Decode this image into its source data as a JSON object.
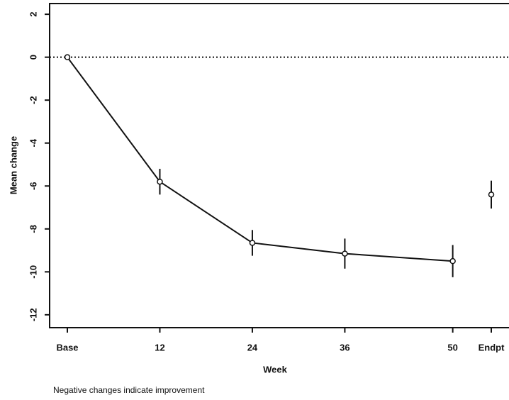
{
  "chart_data": {
    "type": "line",
    "x_label": "Week",
    "y_label": "Mean change",
    "footnote": "Negative changes indicate improvement",
    "series": [
      {
        "x": [
          0,
          12,
          24,
          36,
          50
        ],
        "values": [
          0,
          -5.8,
          -8.65,
          -9.15,
          -9.5
        ],
        "errors": [
          0,
          0.6,
          0.6,
          0.7,
          0.75
        ],
        "line": true,
        "color": "#111111"
      },
      {
        "x": [
          55
        ],
        "values": [
          -6.4
        ],
        "errors": [
          0.65
        ],
        "line": false,
        "color": "#111111"
      }
    ],
    "xlim": [
      -2.3,
      57.3
    ],
    "xticks": [
      {
        "value": 0,
        "label": "Base"
      },
      12,
      24,
      36,
      50,
      {
        "value": 55,
        "label": "Endpt"
      }
    ],
    "ylim": [
      -12.6,
      2.5
    ],
    "yticks": [
      -12,
      -10,
      -8,
      -6,
      -4,
      -2,
      0,
      2
    ],
    "hline": 0,
    "grid": false
  }
}
